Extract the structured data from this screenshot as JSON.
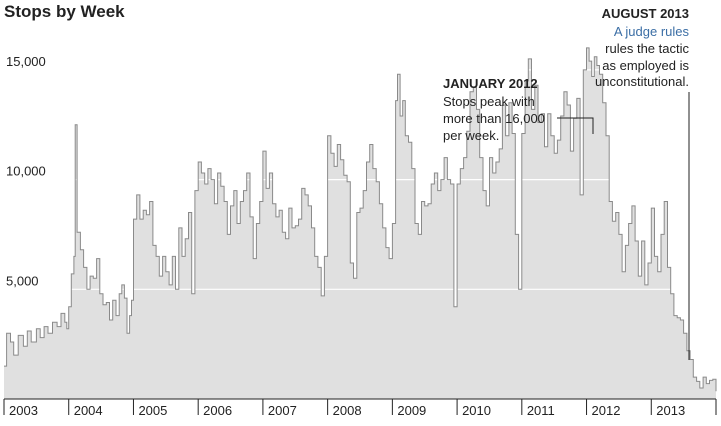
{
  "chart_data": {
    "type": "area",
    "title": "Stops by Week",
    "xlabel": "",
    "ylabel": "",
    "ylim": [
      0,
      17000
    ],
    "xlim": [
      2003.0,
      2014.0
    ],
    "y_ticks": [
      5000,
      10000,
      15000
    ],
    "y_tick_labels": [
      "5,000",
      "10,000",
      "15,000"
    ],
    "x_tick_labels": [
      "2003",
      "2004",
      "2005",
      "2006",
      "2007",
      "2008",
      "2009",
      "2010",
      "2011",
      "2012",
      "2013"
    ],
    "grid": "horizontal lines drawn inside the area",
    "colors": {
      "area": "#e0e0e0",
      "line": "#8a8a8a",
      "annotation_link": "#3b6ea5"
    },
    "series": [
      {
        "x": [
          2003.0,
          2003.04,
          2003.1,
          2003.15,
          2003.22,
          2003.3,
          2003.36,
          2003.42,
          2003.5,
          2003.56,
          2003.62,
          2003.68,
          2003.75,
          2003.82,
          2003.88,
          2003.94,
          2003.97,
          2004.0,
          2004.04,
          2004.08,
          2004.1,
          2004.13,
          2004.18,
          2004.23,
          2004.28,
          2004.33,
          2004.38,
          2004.43,
          2004.48,
          2004.53,
          2004.58,
          2004.63,
          2004.68,
          2004.73,
          2004.78,
          2004.82,
          2004.86,
          2004.9,
          2004.94,
          2004.97,
          2005.0,
          2005.05,
          2005.1,
          2005.15,
          2005.2,
          2005.25,
          2005.3,
          2005.35,
          2005.4,
          2005.45,
          2005.5,
          2005.55,
          2005.6,
          2005.65,
          2005.7,
          2005.75,
          2005.8,
          2005.85,
          2005.9,
          2005.95,
          2006.0,
          2006.05,
          2006.1,
          2006.15,
          2006.2,
          2006.25,
          2006.3,
          2006.35,
          2006.4,
          2006.45,
          2006.5,
          2006.55,
          2006.6,
          2006.65,
          2006.7,
          2006.75,
          2006.8,
          2006.85,
          2006.9,
          2006.95,
          2007.0,
          2007.05,
          2007.1,
          2007.15,
          2007.2,
          2007.25,
          2007.3,
          2007.35,
          2007.4,
          2007.45,
          2007.5,
          2007.55,
          2007.6,
          2007.65,
          2007.7,
          2007.75,
          2007.8,
          2007.85,
          2007.9,
          2007.95,
          2008.0,
          2008.05,
          2008.1,
          2008.15,
          2008.2,
          2008.25,
          2008.3,
          2008.35,
          2008.4,
          2008.45,
          2008.5,
          2008.55,
          2008.6,
          2008.65,
          2008.7,
          2008.75,
          2008.8,
          2008.85,
          2008.9,
          2008.95,
          2009.0,
          2009.05,
          2009.08,
          2009.12,
          2009.16,
          2009.2,
          2009.25,
          2009.3,
          2009.35,
          2009.4,
          2009.45,
          2009.5,
          2009.55,
          2009.6,
          2009.65,
          2009.7,
          2009.75,
          2009.8,
          2009.85,
          2009.9,
          2009.95,
          2010.0,
          2010.05,
          2010.1,
          2010.15,
          2010.2,
          2010.25,
          2010.3,
          2010.35,
          2010.4,
          2010.45,
          2010.5,
          2010.55,
          2010.6,
          2010.65,
          2010.7,
          2010.75,
          2010.8,
          2010.85,
          2010.9,
          2010.95,
          2011.0,
          2011.05,
          2011.1,
          2011.15,
          2011.2,
          2011.25,
          2011.3,
          2011.35,
          2011.4,
          2011.45,
          2011.5,
          2011.55,
          2011.6,
          2011.65,
          2011.7,
          2011.75,
          2011.8,
          2011.85,
          2011.9,
          2011.95,
          2012.0,
          2012.04,
          2012.08,
          2012.12,
          2012.16,
          2012.2,
          2012.25,
          2012.3,
          2012.35,
          2012.4,
          2012.45,
          2012.5,
          2012.55,
          2012.6,
          2012.65,
          2012.7,
          2012.75,
          2012.8,
          2012.85,
          2012.9,
          2012.95,
          2013.0,
          2013.05,
          2013.1,
          2013.15,
          2013.2,
          2013.25,
          2013.3,
          2013.35,
          2013.4,
          2013.45,
          2013.5,
          2013.55,
          2013.6,
          2013.65,
          2013.7,
          2013.75,
          2013.8,
          2013.85,
          2013.9,
          2013.95,
          2014.0
        ],
        "y": [
          1500,
          3000,
          2600,
          2000,
          2900,
          2400,
          3100,
          2600,
          3200,
          2800,
          3300,
          3000,
          3500,
          3300,
          3900,
          3500,
          3200,
          4200,
          5700,
          6500,
          12500,
          7600,
          6800,
          6000,
          5000,
          5600,
          5500,
          6400,
          4800,
          4300,
          4400,
          3600,
          4500,
          3800,
          4800,
          5200,
          4600,
          3000,
          3800,
          4500,
          8200,
          9300,
          8200,
          8600,
          8400,
          9000,
          7000,
          6500,
          5600,
          6500,
          5800,
          5200,
          6500,
          5000,
          7800,
          6500,
          7300,
          8500,
          4800,
          9500,
          10800,
          10300,
          9800,
          10500,
          10000,
          8900,
          10300,
          9700,
          9000,
          7500,
          8800,
          9500,
          8000,
          9000,
          9500,
          10300,
          8300,
          6400,
          8000,
          9000,
          11300,
          9600,
          10300,
          8900,
          8300,
          8600,
          7600,
          7300,
          8700,
          7800,
          7900,
          8200,
          9600,
          9300,
          8800,
          7800,
          6500,
          6000,
          4700,
          6500,
          12000,
          11200,
          10600,
          11600,
          10900,
          10200,
          9900,
          6200,
          5500,
          8500,
          8700,
          9500,
          10800,
          11600,
          10500,
          9900,
          8900,
          7800,
          6900,
          6400,
          8000,
          13600,
          14800,
          12900,
          13600,
          12000,
          11700,
          10500,
          8000,
          7500,
          9000,
          8800,
          8900,
          9800,
          10300,
          9500,
          10000,
          11000,
          10000,
          9800,
          4200,
          9800,
          10500,
          11000,
          12200,
          14000,
          14200,
          13200,
          11000,
          9500,
          8800,
          11000,
          10300,
          10800,
          11400,
          13400,
          12000,
          13500,
          12100,
          7500,
          5000,
          12100,
          14500,
          15500,
          13200,
          14300,
          12600,
          13000,
          11500,
          13000,
          12000,
          11200,
          11800,
          12900,
          14000,
          13400,
          11300,
          12800,
          13700,
          9300,
          15000,
          16000,
          15400,
          14700,
          15600,
          15200,
          14800,
          13500,
          12000,
          9000,
          8100,
          8500,
          7500,
          5800,
          7000,
          8000,
          8800,
          7200,
          5600,
          7200,
          5200,
          6200,
          8700,
          6500,
          5800,
          7500,
          9000,
          6000,
          4800,
          3800,
          3700,
          3600,
          3000,
          2200,
          1800,
          1000,
          800,
          500,
          1000,
          700,
          850,
          900,
          350
        ]
      }
    ],
    "annotations": [
      {
        "heading": "JANUARY 2012",
        "lines": [
          "Stops peak with",
          "more than 16,000",
          "per week."
        ]
      },
      {
        "heading": "AUGUST 2013",
        "link_line": "A judge rules",
        "lines": [
          "rules the tactic",
          "as employed is",
          "unconstitutional."
        ]
      }
    ]
  }
}
